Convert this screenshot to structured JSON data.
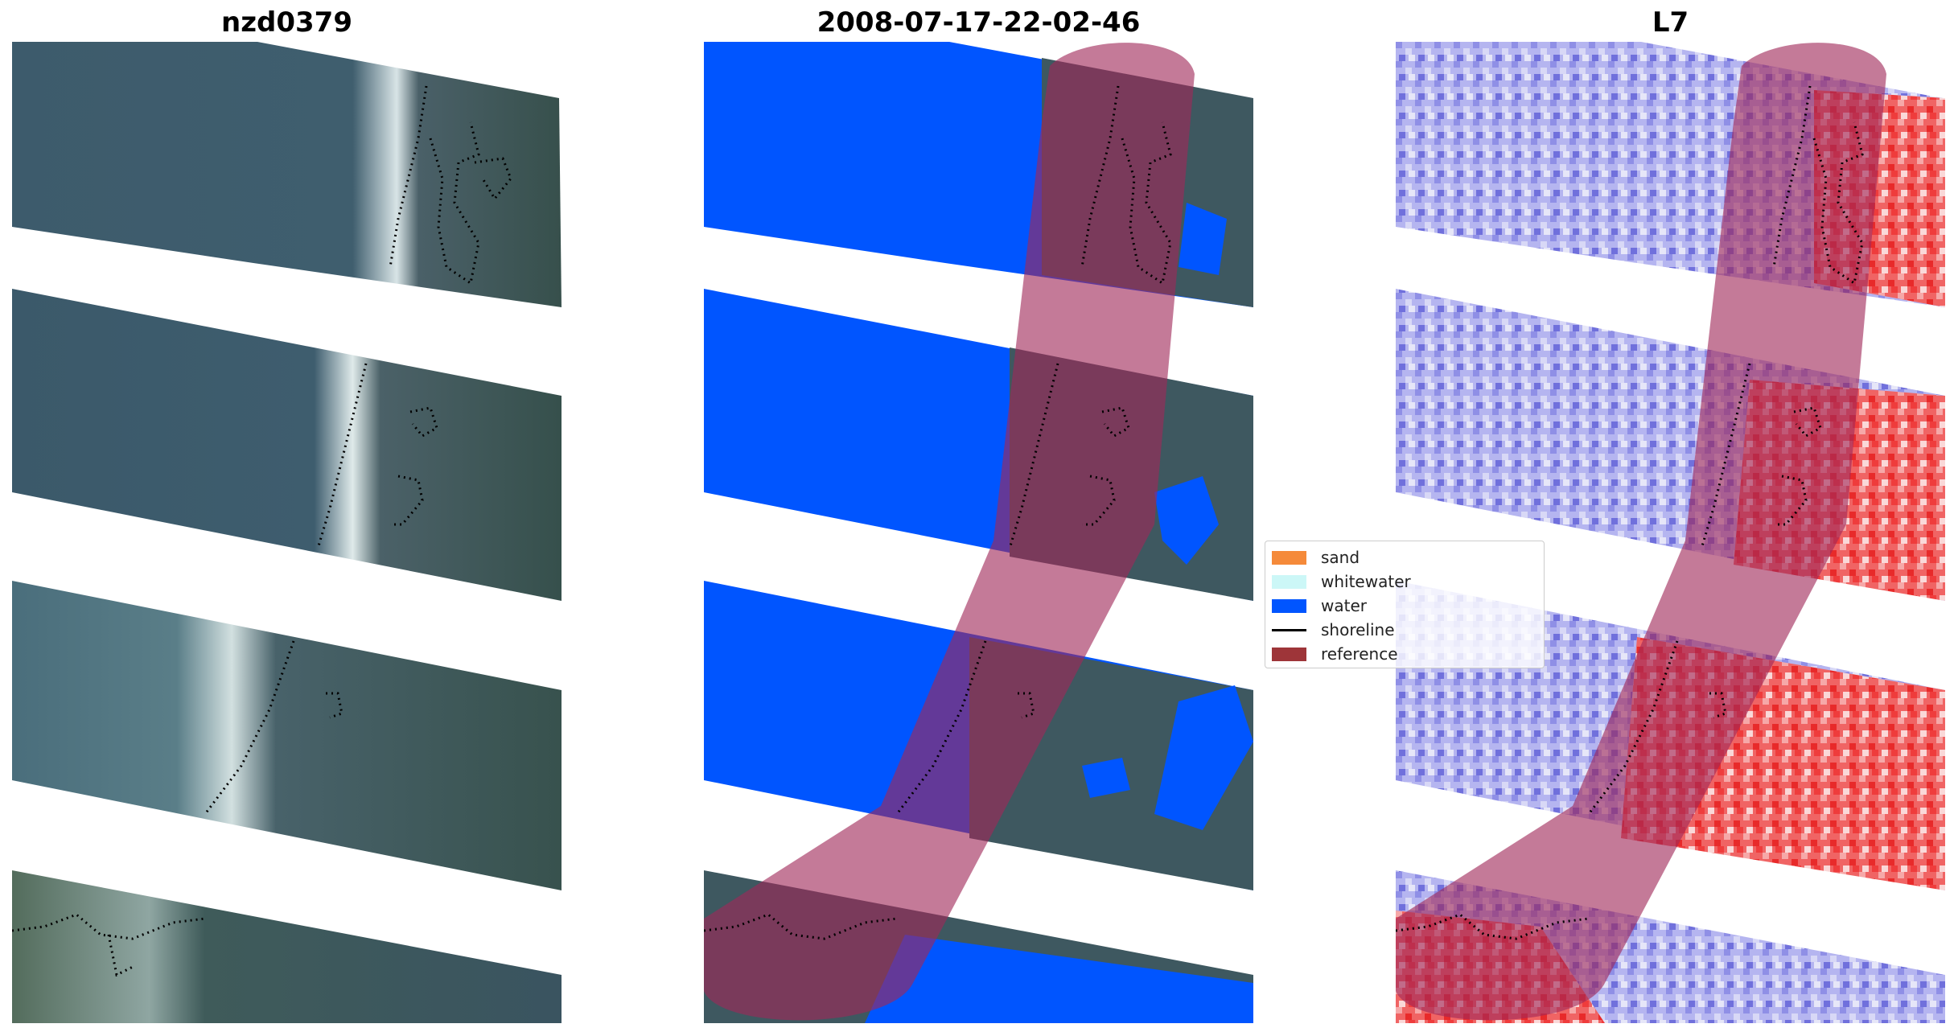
{
  "panels": [
    {
      "title": "nzd0379"
    },
    {
      "title": "2008-07-17-22-02-46"
    },
    {
      "title": "L7"
    }
  ],
  "legend": {
    "items": [
      {
        "label": "sand",
        "kind": "patch",
        "color": "#f58a3a"
      },
      {
        "label": "whitewater",
        "kind": "patch",
        "color": "#ccf7f7"
      },
      {
        "label": "water",
        "kind": "patch",
        "color": "#0055ff"
      },
      {
        "label": "shoreline",
        "kind": "line",
        "color": "#000000"
      },
      {
        "label": "reference",
        "kind": "patch",
        "color": "#9e3539"
      }
    ]
  },
  "colors": {
    "rgb_image": "#3e5a6a",
    "rgb_land": "#385048",
    "water_class": "#0055ff",
    "reference_buffer": "#a02858",
    "index_water": "#b8b8f0",
    "index_land": "#f03838"
  }
}
